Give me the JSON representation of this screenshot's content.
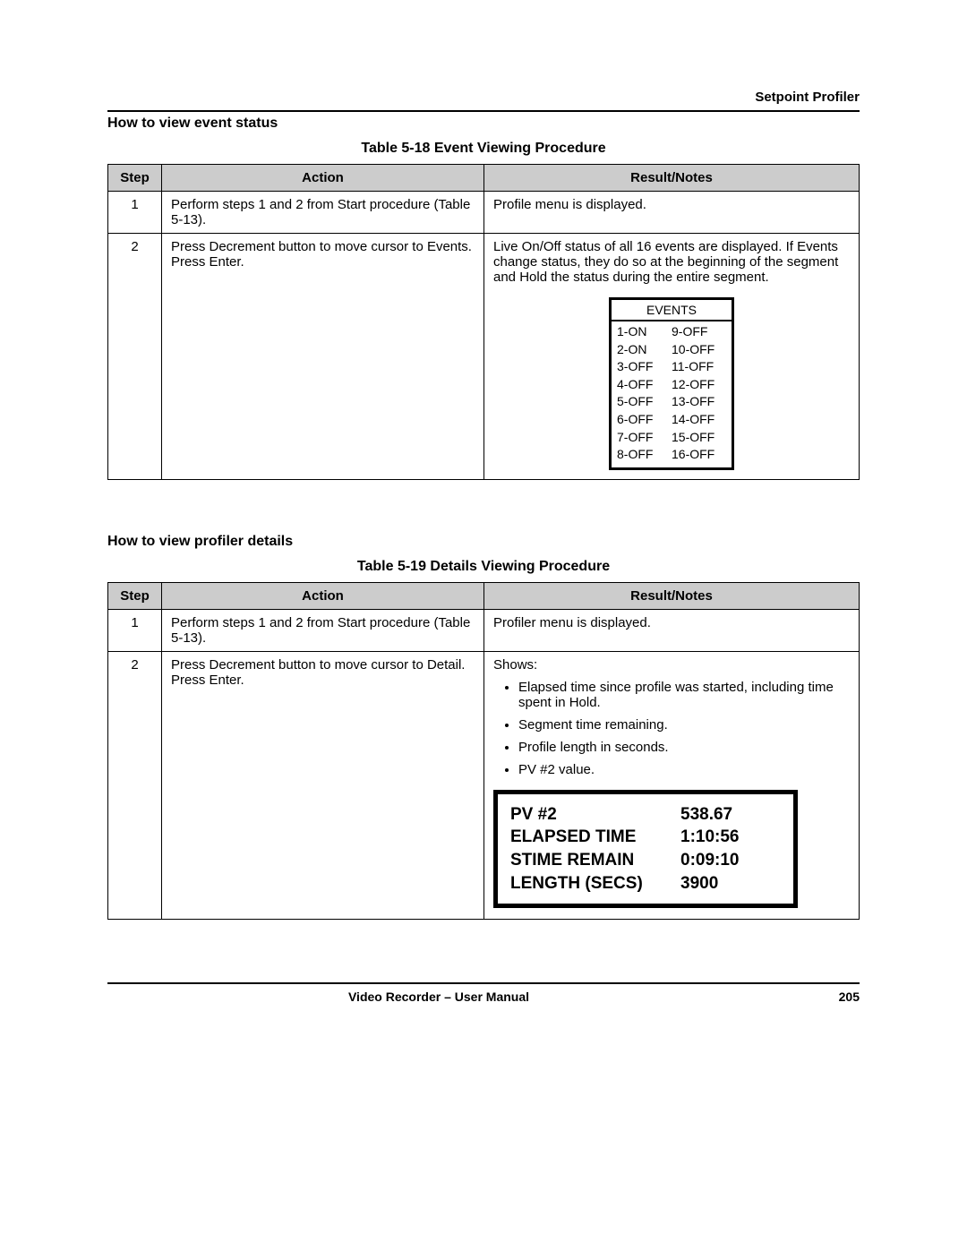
{
  "header": {
    "right_label": "Setpoint Profiler"
  },
  "section1": {
    "heading": "How to view event status",
    "caption": "Table 5-18   Event Viewing Procedure",
    "columns": {
      "step": "Step",
      "action": "Action",
      "result": "Result/Notes"
    },
    "rows": [
      {
        "step": "1",
        "action": "Perform steps 1 and 2 from Start procedure (Table 5-13).",
        "result_text": "Profile menu is displayed."
      },
      {
        "step": "2",
        "action": "Press Decrement button to move cursor to Events.  Press Enter.",
        "result_text": "Live On/Off status of all 16 events are displayed. If Events change status, they do so at the beginning of the segment and Hold the status during the entire segment."
      }
    ],
    "events_box": {
      "title": "EVENTS",
      "left_col": [
        "1-ON",
        "2-ON",
        "3-OFF",
        "4-OFF",
        "5-OFF",
        "6-OFF",
        "7-OFF",
        "8-OFF"
      ],
      "right_col": [
        "9-OFF",
        "10-OFF",
        "11-OFF",
        "12-OFF",
        "13-OFF",
        "14-OFF",
        "15-OFF",
        "16-OFF"
      ]
    }
  },
  "section2": {
    "heading": "How to view profiler details",
    "caption": "Table 5-19   Details Viewing Procedure",
    "columns": {
      "step": "Step",
      "action": "Action",
      "result": "Result/Notes"
    },
    "rows": [
      {
        "step": "1",
        "action": "Perform steps 1 and 2 from Start procedure (Table 5-13).",
        "result_text": "Profiler menu is displayed."
      },
      {
        "step": "2",
        "action": "Press Decrement button to move cursor to Detail.  Press Enter.",
        "result_intro": "Shows:",
        "bullets": [
          "Elapsed time since profile was started, including time spent in Hold.",
          "Segment time remaining.",
          "Profile length in seconds.",
          "PV #2 value."
        ]
      }
    ],
    "detail_box": {
      "rows": [
        {
          "label": "PV #2",
          "value": "538.67"
        },
        {
          "label": "ELAPSED TIME",
          "value": "1:10:56"
        },
        {
          "label": "STIME REMAIN",
          "value": "0:09:10"
        },
        {
          "label": "LENGTH (SECS)",
          "value": "3900"
        }
      ]
    }
  },
  "footer": {
    "center": "Video Recorder – User Manual",
    "page": "205"
  }
}
